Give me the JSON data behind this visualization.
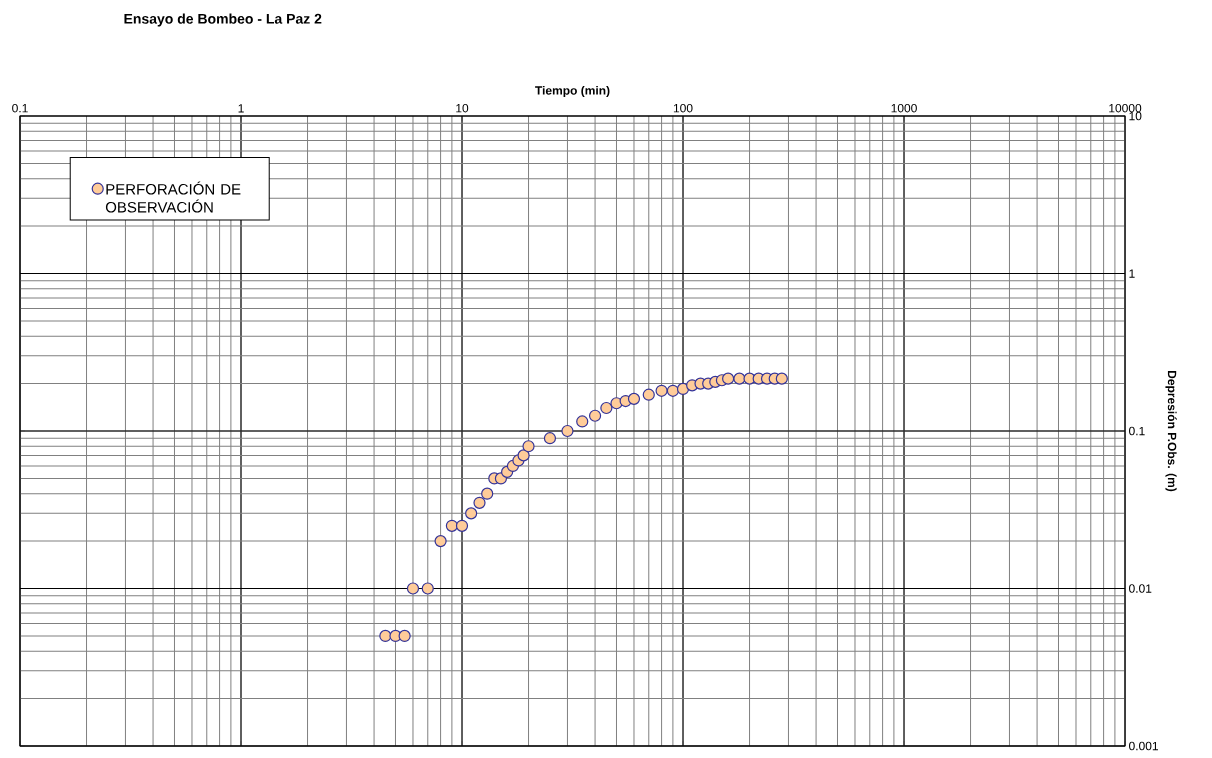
{
  "chart_data": {
    "type": "scatter",
    "title": "Ensayo de Bombeo - La Paz 2",
    "xlabel": "Tiempo (min)",
    "ylabel": "Depresión P.Obs. (m)",
    "log": "xy",
    "grid": true,
    "legend": "top left",
    "marker": "circle",
    "xlim": [
      0.1,
      10000
    ],
    "xticks": [
      0.1,
      1,
      10,
      100,
      1000,
      10000
    ],
    "ylim": [
      0.001,
      10
    ],
    "yticks": [
      0.001,
      0.01,
      0.1,
      1,
      10
    ],
    "series": [
      {
        "name": "PERFORACIÓN DE OBSERVACIÓN",
        "color": "#ffcc99",
        "x": [
          4.5,
          5,
          5.5,
          6,
          7,
          8,
          9,
          10,
          11,
          12,
          13,
          14,
          15,
          16,
          17,
          18,
          19,
          20,
          25,
          30,
          35,
          40,
          45,
          50,
          55,
          60,
          70,
          80,
          90,
          100,
          110,
          120,
          130,
          140,
          150,
          160,
          180,
          200,
          220,
          240,
          260,
          280
        ],
        "values": [
          0.005,
          0.005,
          0.005,
          0.01,
          0.01,
          0.02,
          0.025,
          0.025,
          0.03,
          0.035,
          0.04,
          0.05,
          0.05,
          0.055,
          0.06,
          0.065,
          0.07,
          0.08,
          0.09,
          0.1,
          0.115,
          0.125,
          0.14,
          0.15,
          0.155,
          0.16,
          0.17,
          0.18,
          0.18,
          0.185,
          0.195,
          0.2,
          0.2,
          0.205,
          0.21,
          0.215,
          0.215,
          0.215,
          0.215,
          0.215,
          0.215,
          0.215
        ]
      }
    ]
  }
}
